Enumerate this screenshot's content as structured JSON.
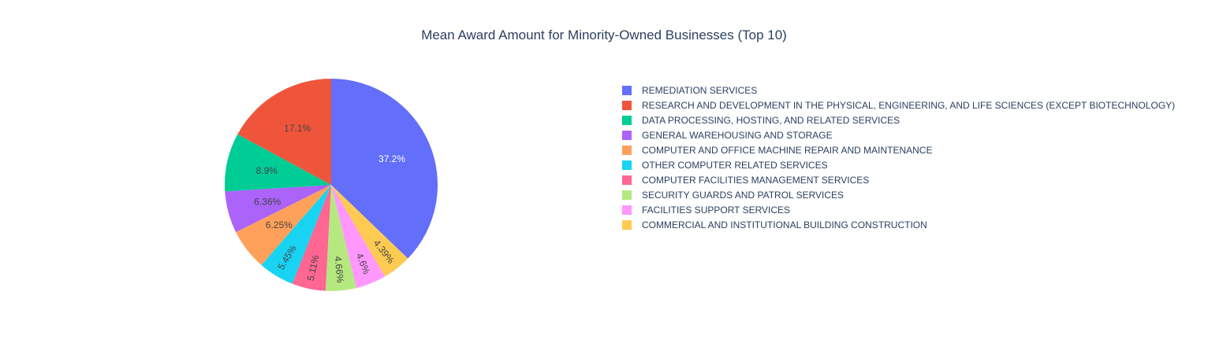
{
  "chart_data": {
    "type": "pie",
    "title": "Mean Award Amount for Minority-Owned Businesses (Top 10)",
    "legend_position": "right",
    "direction": "clockwise",
    "slices": [
      {
        "label": "REMEDIATION SERVICES",
        "percent": 37.2,
        "text": "37.2%",
        "color": "#636efa",
        "text_color": "#ffffff"
      },
      {
        "label": "COMMERCIAL AND INSTITUTIONAL BUILDING CONSTRUCTION",
        "percent": 4.39,
        "text": "4.39%",
        "color": "#fecb52",
        "text_color": "#444444"
      },
      {
        "label": "FACILITIES SUPPORT SERVICES",
        "percent": 4.6,
        "text": "4.6%",
        "color": "#ff97ff",
        "text_color": "#444444"
      },
      {
        "label": "SECURITY GUARDS AND PATROL SERVICES",
        "percent": 4.66,
        "text": "4.66%",
        "color": "#b6e880",
        "text_color": "#444444"
      },
      {
        "label": "COMPUTER FACILITIES MANAGEMENT SERVICES",
        "percent": 5.11,
        "text": "5.11%",
        "color": "#ff6692",
        "text_color": "#444444"
      },
      {
        "label": "OTHER COMPUTER RELATED SERVICES",
        "percent": 5.45,
        "text": "5.45%",
        "color": "#19d3f3",
        "text_color": "#444444"
      },
      {
        "label": "COMPUTER AND OFFICE MACHINE REPAIR AND MAINTENANCE",
        "percent": 6.25,
        "text": "6.25%",
        "color": "#ffa15a",
        "text_color": "#444444"
      },
      {
        "label": "GENERAL WAREHOUSING AND STORAGE",
        "percent": 6.36,
        "text": "6.36%",
        "color": "#ab63fa",
        "text_color": "#444444"
      },
      {
        "label": "DATA PROCESSING, HOSTING, AND RELATED SERVICES",
        "percent": 8.9,
        "text": "8.9%",
        "color": "#00cc96",
        "text_color": "#444444"
      },
      {
        "label": "RESEARCH AND DEVELOPMENT IN THE PHYSICAL, ENGINEERING, AND LIFE SCIENCES (EXCEPT BIOTECHNOLOGY)",
        "percent": 17.1,
        "text": "17.1%",
        "color": "#ef553b",
        "text_color": "#444444"
      }
    ],
    "legend": [
      {
        "label": "REMEDIATION SERVICES",
        "color": "#636efa"
      },
      {
        "label": "RESEARCH AND DEVELOPMENT IN THE PHYSICAL, ENGINEERING, AND LIFE SCIENCES (EXCEPT BIOTECHNOLOGY)",
        "color": "#ef553b"
      },
      {
        "label": "DATA PROCESSING, HOSTING, AND RELATED SERVICES",
        "color": "#00cc96"
      },
      {
        "label": "GENERAL WAREHOUSING AND STORAGE",
        "color": "#ab63fa"
      },
      {
        "label": "COMPUTER AND OFFICE MACHINE REPAIR AND MAINTENANCE",
        "color": "#ffa15a"
      },
      {
        "label": "OTHER COMPUTER RELATED SERVICES",
        "color": "#19d3f3"
      },
      {
        "label": "COMPUTER FACILITIES MANAGEMENT SERVICES",
        "color": "#ff6692"
      },
      {
        "label": "SECURITY GUARDS AND PATROL SERVICES",
        "color": "#b6e880"
      },
      {
        "label": "FACILITIES SUPPORT SERVICES",
        "color": "#ff97ff"
      },
      {
        "label": "COMMERCIAL AND INSTITUTIONAL BUILDING CONSTRUCTION",
        "color": "#fecb52"
      }
    ]
  }
}
